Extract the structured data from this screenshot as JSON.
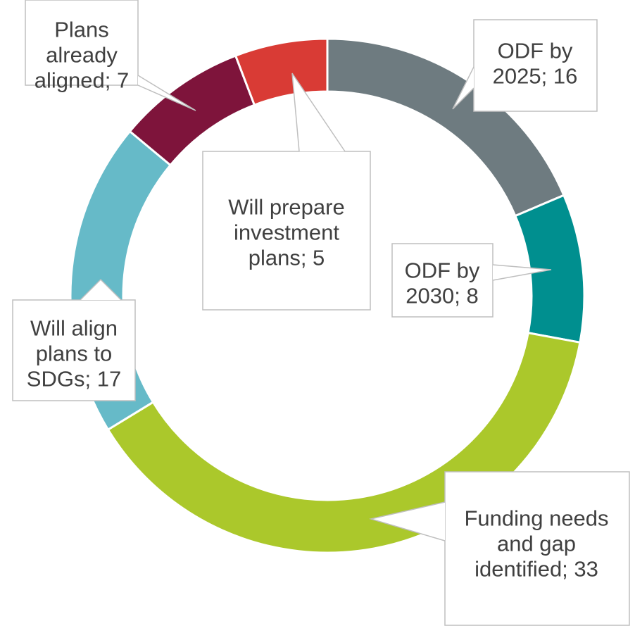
{
  "chart_data": {
    "type": "pie",
    "variant": "doughnut",
    "title": "",
    "categories": [
      "ODF by 2025",
      "ODF by 2030",
      "Funding needs and gap identified",
      "Will align plans to SDGs",
      "Plans already aligned",
      "Will prepare investment plans"
    ],
    "values": [
      16,
      8,
      33,
      17,
      7,
      5
    ],
    "colors": [
      "#6E7B80",
      "#008F8F",
      "#ABC82B",
      "#66BAC8",
      "#7E143B",
      "#D93B35"
    ],
    "labels": [
      [
        "ODF by",
        "2025; 16"
      ],
      [
        "ODF by",
        "2030; 8"
      ],
      [
        "Funding needs",
        "and gap",
        "identified; 33"
      ],
      [
        "Will align",
        "plans to",
        "SDGs; 17"
      ],
      [
        "Plans",
        "already",
        "aligned; 7"
      ],
      [
        "Will prepare",
        "investment",
        "plans; 5"
      ]
    ],
    "legend": "none"
  }
}
